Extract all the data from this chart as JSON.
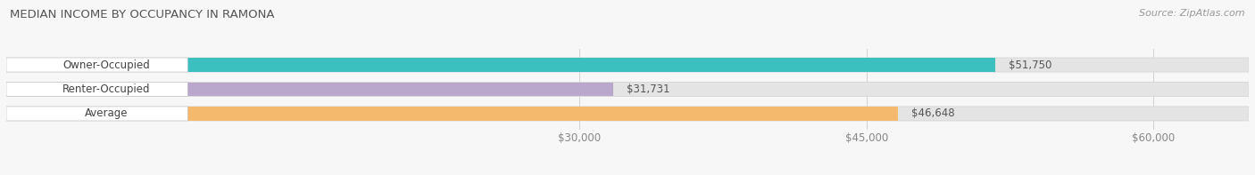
{
  "title": "MEDIAN INCOME BY OCCUPANCY IN RAMONA",
  "source": "Source: ZipAtlas.com",
  "categories": [
    "Owner-Occupied",
    "Renter-Occupied",
    "Average"
  ],
  "values": [
    51750,
    31731,
    46648
  ],
  "bar_colors": [
    "#3bbfbf",
    "#b9a8cc",
    "#f5b96e"
  ],
  "value_labels": [
    "$51,750",
    "$31,731",
    "$46,648"
  ],
  "xlim": [
    0,
    65000
  ],
  "xmin": 0,
  "xmax": 65000,
  "xticks": [
    30000,
    45000,
    60000
  ],
  "xtick_labels": [
    "$30,000",
    "$45,000",
    "$60,000"
  ],
  "title_fontsize": 9.5,
  "source_fontsize": 8,
  "label_fontsize": 8.5,
  "value_fontsize": 8.5,
  "bar_height": 0.58,
  "background_color": "#f7f7f7",
  "bar_bg_color": "#e4e4e4",
  "bar_bg_edge": "#d8d8d8",
  "label_bg_color": "#ffffff",
  "grid_color": "#d0d0d0"
}
